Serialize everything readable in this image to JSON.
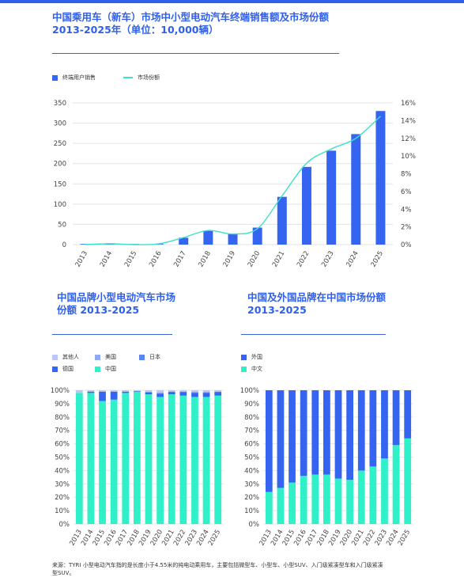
{
  "colors": {
    "accent": "#2f5fe8",
    "bar_blue": "#3564f0",
    "line_teal": "#3ee0c6",
    "china_teal": "#2ff0c8",
    "foreign_blue": "#3564f0"
  },
  "chart1": {
    "title": "中国乘用车（新车）市场中小型电动汽车终端销售额及市场份额2013-2025年（单位：10,000辆）",
    "legend": {
      "bar": "终端用户销售",
      "line": "市场份额"
    }
  },
  "chart2": {
    "title": "中国品牌小型电动汽车市场份额 2013-2025",
    "legend": [
      "其他人",
      "美国",
      "日本",
      "德国",
      "中国"
    ]
  },
  "chart3": {
    "title": "中国及外国品牌在中国市场份额 2013-2025",
    "legend": [
      "外国",
      "中文"
    ]
  },
  "source": "来源：TYRI 小型电动汽车指的是长度小于4.55米的纯电动乘用车，主要包括微型车、小型车、小型SUV、入门级紧凑型车和入门级紧凑型SUV。",
  "chart_data": [
    {
      "type": "bar",
      "title": "中国乘用车（新车）市场中小型电动汽车终端销售额及市场份额2013-2025年（单位：10,000辆）",
      "categories": [
        "2013",
        "2014",
        "2015",
        "2016",
        "2017",
        "2018",
        "2019",
        "2020",
        "2021",
        "2022",
        "2023",
        "2024",
        "2025"
      ],
      "series": [
        {
          "name": "终端用户销售",
          "axis": "left",
          "type": "bar",
          "values": [
            1,
            3,
            1,
            1,
            17,
            34,
            27,
            42,
            118,
            192,
            232,
            273,
            330
          ]
        },
        {
          "name": "市场份额",
          "axis": "right",
          "type": "line",
          "values": [
            0.0,
            0.1,
            0.0,
            0.1,
            0.8,
            1.6,
            1.2,
            1.8,
            5.5,
            9.2,
            10.8,
            12.0,
            14.5
          ]
        }
      ],
      "ylim": [
        0,
        350
      ],
      "yticks": [
        0,
        50,
        100,
        150,
        200,
        250,
        300,
        350
      ],
      "y2lim": [
        0,
        16
      ],
      "y2ticks": [
        "0%",
        "2%",
        "4%",
        "6%",
        "8%",
        "10%",
        "12%",
        "14%",
        "16%"
      ],
      "grid": true,
      "legend_position": "top-left"
    },
    {
      "type": "bar",
      "stacked": true,
      "title": "中国品牌小型电动汽车市场份额 2013-2025",
      "categories": [
        "2013",
        "2014",
        "2015",
        "2016",
        "2017",
        "2018",
        "2019",
        "2020",
        "2021",
        "2022",
        "2023",
        "2024",
        "2025"
      ],
      "series": [
        {
          "name": "中国",
          "values": [
            98,
            98,
            92,
            93,
            98,
            99,
            97,
            95,
            97,
            96,
            95,
            95,
            96
          ]
        },
        {
          "name": "德国",
          "values": [
            0,
            1,
            7,
            6,
            1,
            0.5,
            1.5,
            2.5,
            1.5,
            2.5,
            3,
            3,
            2.5
          ]
        },
        {
          "name": "日本",
          "values": [
            0,
            0,
            0,
            0,
            0,
            0,
            0,
            0.5,
            0.5,
            0.5,
            0.5,
            0.5,
            0.5
          ]
        },
        {
          "name": "美国",
          "values": [
            0,
            0,
            0,
            0,
            0,
            0,
            0,
            0,
            0,
            0,
            0,
            0,
            0
          ]
        },
        {
          "name": "其他人",
          "values": [
            2,
            1,
            1,
            1,
            1,
            0.5,
            1.5,
            2,
            1,
            1,
            1.5,
            1.5,
            1
          ]
        }
      ],
      "ylim": [
        0,
        100
      ],
      "yticks": [
        "0%",
        "10%",
        "20%",
        "30%",
        "40%",
        "50%",
        "60%",
        "70%",
        "80%",
        "90%",
        "100%"
      ],
      "grid": true,
      "legend_position": "top-left"
    },
    {
      "type": "bar",
      "stacked": true,
      "title": "中国及外国品牌在中国市场份额 2013-2025",
      "categories": [
        "2013",
        "2014",
        "2015",
        "2016",
        "2017",
        "2018",
        "2019",
        "2020",
        "2021",
        "2022",
        "2023",
        "2024",
        "2025"
      ],
      "series": [
        {
          "name": "中文",
          "values": [
            24,
            27,
            31,
            36,
            37,
            37,
            34,
            33,
            40,
            43,
            49,
            59,
            64
          ]
        },
        {
          "name": "外国",
          "values": [
            76,
            73,
            69,
            64,
            63,
            63,
            66,
            67,
            60,
            57,
            51,
            41,
            36
          ]
        }
      ],
      "ylim": [
        0,
        100
      ],
      "yticks": [
        "0%",
        "10%",
        "20%",
        "30%",
        "40%",
        "50%",
        "60%",
        "70%",
        "80%",
        "90%",
        "100%"
      ],
      "grid": true,
      "legend_position": "top-left"
    }
  ]
}
